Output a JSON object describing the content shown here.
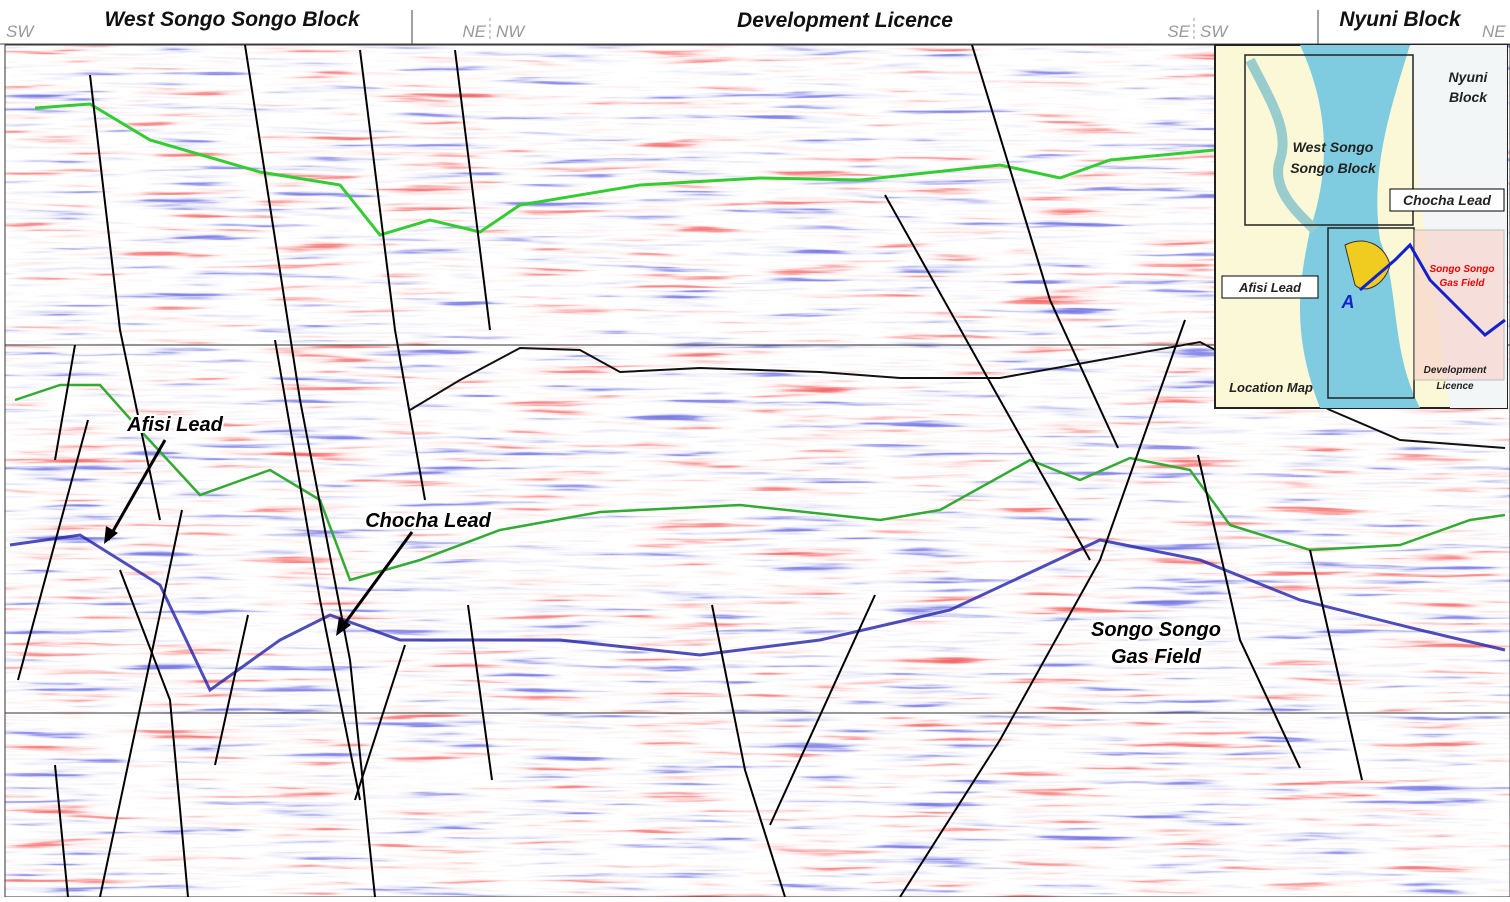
{
  "header": {
    "left_end": "SW",
    "blocks": [
      "West Songo Songo Block",
      "Development Licence",
      "Nyuni Block"
    ],
    "junctions": [
      [
        "NE",
        "NW"
      ],
      [
        "SE",
        "SW"
      ]
    ],
    "right_end": "NE"
  },
  "section": {
    "annotations": [
      {
        "lines": [
          "Afisi Lead"
        ]
      },
      {
        "lines": [
          "Chocha Lead"
        ]
      },
      {
        "lines": [
          "Songo Songo",
          "Gas Field"
        ]
      }
    ]
  },
  "inset_map": {
    "labels": {
      "nyuni": [
        "Nyuni",
        "Block"
      ],
      "west": [
        "West Songo",
        "Songo Block"
      ],
      "chocha": "Chocha Lead",
      "field": [
        "Songo Songo",
        "Gas Field"
      ],
      "afisi": "Afisi Lead",
      "point": "A",
      "location": "Location Map",
      "licence": [
        "Development",
        "Licence"
      ]
    }
  }
}
